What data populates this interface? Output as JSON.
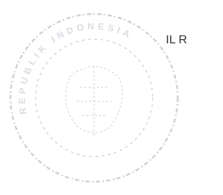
{
  "stamp": {
    "text": "REPUBLIK INDONESIA"
  },
  "fragment": {
    "text": "IL R"
  }
}
